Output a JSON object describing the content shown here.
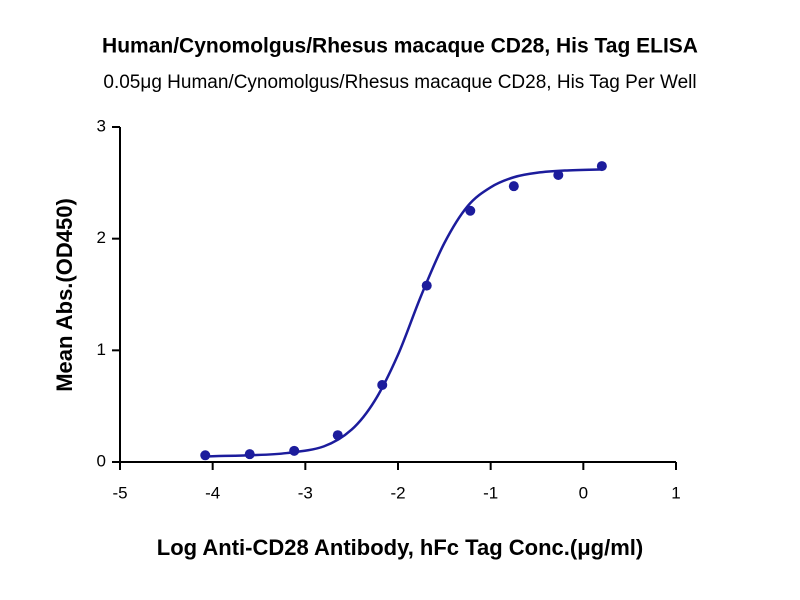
{
  "chart_data": {
    "type": "scatter",
    "title": "Human/Cynomolgus/Rhesus macaque CD28, His Tag ELISA",
    "subtitle": "0.05μg Human/Cynomolgus/Rhesus macaque CD28, His Tag Per Well",
    "x_label": "Log Anti-CD28 Antibody, hFc Tag Conc.(μg/ml)",
    "y_label": "Mean Abs.(OD450)",
    "color": "#1c1c9c",
    "x": [
      -4.08,
      -3.6,
      -3.12,
      -2.65,
      -2.17,
      -1.69,
      -1.22,
      -0.75,
      -0.27,
      0.2
    ],
    "values": [
      0.06,
      0.07,
      0.1,
      0.24,
      0.69,
      1.58,
      2.25,
      2.47,
      2.57,
      2.65
    ],
    "curve": {
      "x": [
        -4.1,
        -3.6,
        -3.2,
        -2.8,
        -2.5,
        -2.25,
        -2.0,
        -1.75,
        -1.5,
        -1.25,
        -1.0,
        -0.75,
        -0.5,
        -0.2,
        0.2
      ],
      "y": [
        0.05,
        0.06,
        0.08,
        0.14,
        0.29,
        0.55,
        0.96,
        1.49,
        1.96,
        2.29,
        2.46,
        2.55,
        2.59,
        2.61,
        2.62
      ]
    },
    "xlim": [
      -5,
      1
    ],
    "xticks": [
      -5,
      -4,
      -3,
      -2,
      -1,
      0,
      1
    ],
    "ylim": [
      0,
      3
    ],
    "yticks": [
      0,
      1,
      2,
      3
    ]
  }
}
